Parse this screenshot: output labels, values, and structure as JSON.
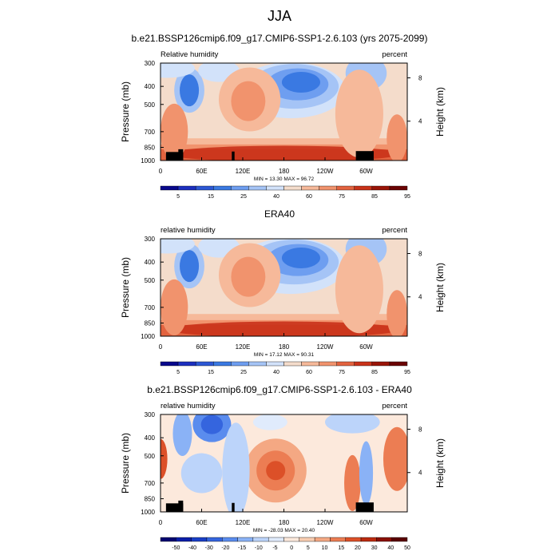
{
  "title": "JJA",
  "colors": {
    "rh_palette": [
      "#08088c",
      "#1c2fbf",
      "#2c57d4",
      "#3a79e2",
      "#6e9ef0",
      "#a5c4f6",
      "#d2e2fa",
      "#f4dccb",
      "#f6b99a",
      "#f1936d",
      "#e3633f",
      "#c93219",
      "#9a1408",
      "#6b0303"
    ],
    "diff_palette": [
      "#040470",
      "#0a1ea8",
      "#1a3fc6",
      "#3565de",
      "#5a8cee",
      "#8ab2f6",
      "#bcd4fa",
      "#e0ebfc",
      "#fce9dc",
      "#f8cdb1",
      "#f4a883",
      "#ec7d53",
      "#dc5028",
      "#bb2a10",
      "#8a1004",
      "#5a0000"
    ]
  },
  "chart_data": [
    {
      "type": "contour",
      "title": "b.e21.BSSP126cmip6.f09_g17.CMIP6-SSP1-2.6.103 (yrs 2075-2099)",
      "left_label": "Relative humidity",
      "right_label": "percent",
      "ylabel": "Pressure (mb)",
      "ylabel_right": "Height (km)",
      "yticks": [
        "300",
        "400",
        "500",
        "700",
        "850",
        "1000"
      ],
      "ytick_values": [
        300,
        400,
        500,
        700,
        850,
        1000
      ],
      "ylim": [
        300,
        1000
      ],
      "yticks_right": [
        "8",
        "4"
      ],
      "xticks": [
        "0",
        "60E",
        "120E",
        "180",
        "120W",
        "60W"
      ],
      "xtick_values": [
        0,
        60,
        120,
        180,
        240,
        300
      ],
      "xlim": [
        0,
        360
      ],
      "minmax": "MIN = 13.30  MAX = 96.72",
      "colorbar_labels": [
        "5",
        "15",
        "25",
        "40",
        "60",
        "75",
        "85",
        "95"
      ],
      "palette": "rh_palette",
      "terrain": true
    },
    {
      "type": "contour",
      "title": "ERA40",
      "left_label": "relative humidity",
      "right_label": "percent",
      "ylabel": "Pressure (mb)",
      "ylabel_right": "Height (km)",
      "yticks": [
        "300",
        "400",
        "500",
        "700",
        "850",
        "1000"
      ],
      "ytick_values": [
        300,
        400,
        500,
        700,
        850,
        1000
      ],
      "ylim": [
        300,
        1000
      ],
      "yticks_right": [
        "8",
        "4"
      ],
      "xticks": [
        "0",
        "60E",
        "120E",
        "180",
        "120W",
        "60W"
      ],
      "xtick_values": [
        0,
        60,
        120,
        180,
        240,
        300
      ],
      "xlim": [
        0,
        360
      ],
      "minmax": "MIN = 17.12  MAX = 90.31",
      "colorbar_labels": [
        "5",
        "15",
        "25",
        "40",
        "60",
        "75",
        "85",
        "95"
      ],
      "palette": "rh_palette",
      "terrain": false
    },
    {
      "type": "contour",
      "title": "b.e21.BSSP126cmip6.f09_g17.CMIP6-SSP1-2.6.103 - ERA40",
      "left_label": "relative humidity",
      "right_label": "percent",
      "ylabel": "Pressure (mb)",
      "ylabel_right": "Height (km)",
      "yticks": [
        "300",
        "400",
        "500",
        "700",
        "850",
        "1000"
      ],
      "ytick_values": [
        300,
        400,
        500,
        700,
        850,
        1000
      ],
      "ylim": [
        300,
        1000
      ],
      "yticks_right": [
        "8",
        "4"
      ],
      "xticks": [
        "0",
        "60E",
        "120E",
        "180",
        "120W",
        "60W"
      ],
      "xtick_values": [
        0,
        60,
        120,
        180,
        240,
        300
      ],
      "xlim": [
        0,
        360
      ],
      "minmax": "MIN = -28.03  MAX = 20.40",
      "colorbar_labels": [
        "-50",
        "-40",
        "-30",
        "-20",
        "-15",
        "-10",
        "-5",
        "0",
        "5",
        "10",
        "15",
        "20",
        "30",
        "40",
        "50"
      ],
      "palette": "diff_palette",
      "terrain": true
    }
  ]
}
